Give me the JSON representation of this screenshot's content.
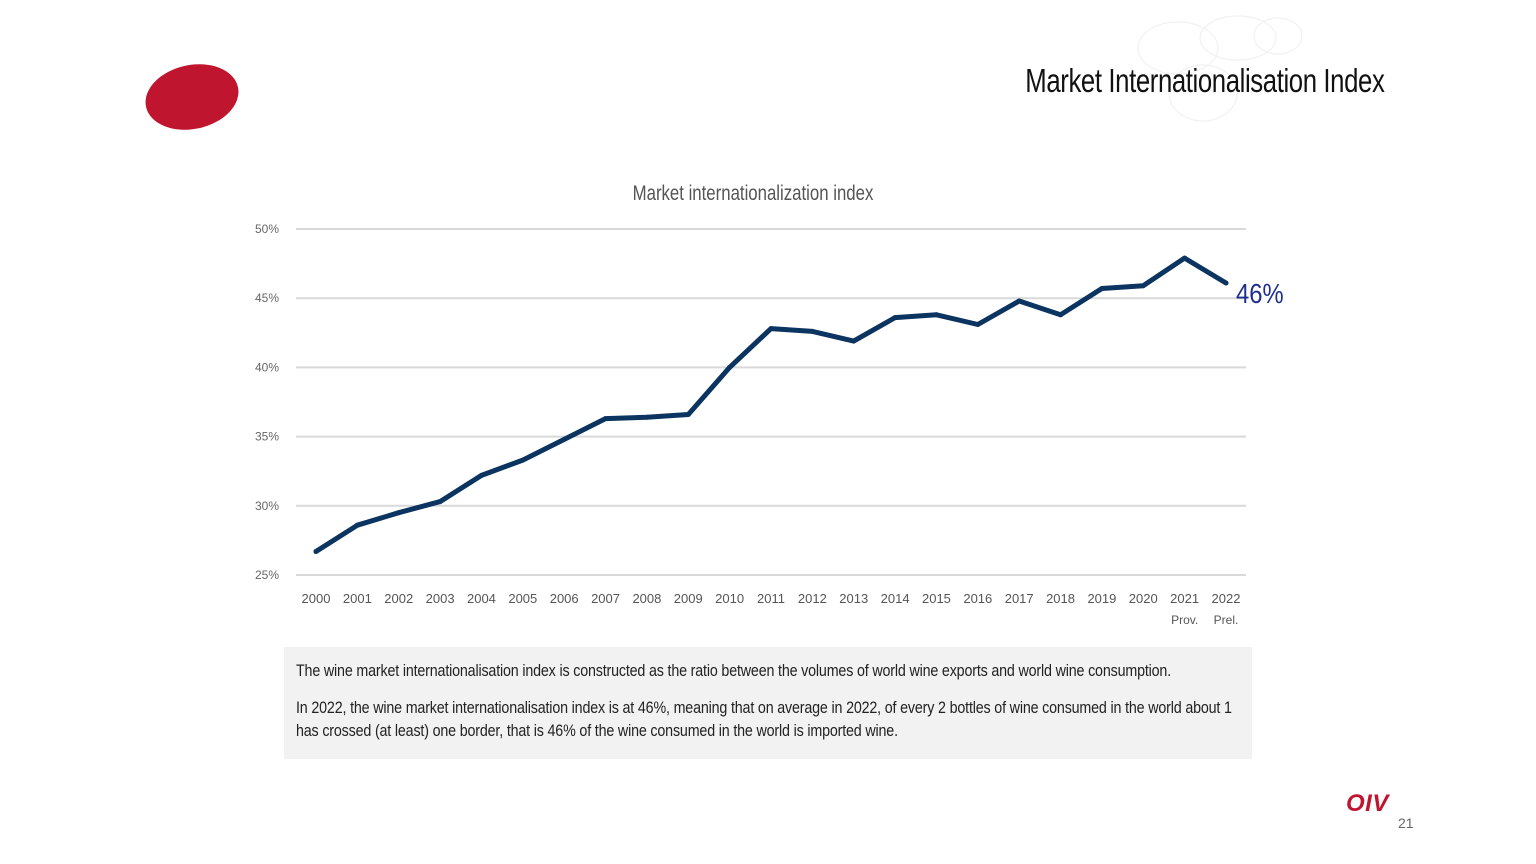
{
  "slide": {
    "title": "Market Internationalisation Index",
    "page_number": "21",
    "brand": "OIV",
    "brand_color": "#c0152f",
    "line_color": "#0c3461",
    "label_color": "#1f2f8f"
  },
  "note": {
    "paragraph1": "The wine market internationalisation index is constructed as the ratio between the volumes of world wine exports and world wine consumption.",
    "paragraph2": "In 2022, the wine market internationalisation index is at 46%, meaning that on average in 2022, of every 2 bottles of wine consumed in the world about 1 has crossed (at least) one border, that is 46% of the wine consumed in the world is imported wine."
  },
  "chart_data": {
    "type": "line",
    "title": "Market internationalization index",
    "xlabel": "",
    "ylabel": "",
    "categories": [
      "2000",
      "2001",
      "2002",
      "2003",
      "2004",
      "2005",
      "2006",
      "2007",
      "2008",
      "2009",
      "2010",
      "2011",
      "2012",
      "2013",
      "2014",
      "2015",
      "2016",
      "2017",
      "2018",
      "2019",
      "2020",
      "2021",
      "2022"
    ],
    "sub_labels": {
      "2021": "Prov.",
      "2022": "Prel."
    },
    "series": [
      {
        "name": "Market internationalization index",
        "values": [
          26.7,
          28.6,
          29.5,
          30.3,
          32.2,
          33.3,
          34.8,
          36.3,
          36.4,
          36.6,
          40.0,
          42.8,
          42.6,
          41.9,
          43.6,
          43.8,
          43.1,
          44.8,
          43.8,
          45.7,
          45.9,
          47.9,
          46.1
        ]
      }
    ],
    "ylim": [
      25,
      50
    ],
    "yticks": [
      25,
      30,
      35,
      40,
      45,
      50
    ],
    "ytick_labels": [
      "25%",
      "30%",
      "35%",
      "40%",
      "45%",
      "50%"
    ],
    "grid": true,
    "end_label": "46%"
  }
}
